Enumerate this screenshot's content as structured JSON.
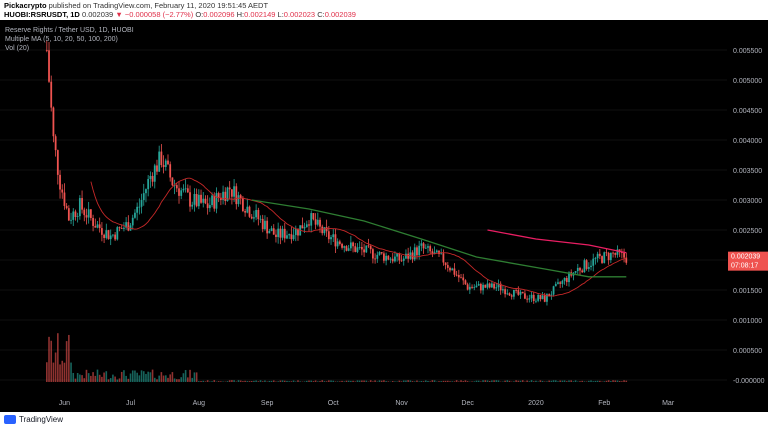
{
  "header": {
    "author": "Pickacrypto",
    "published": " published on TradingView.com, February 11, 2020 19:51:45 AEDT",
    "symbol": "HUOBI:RSRUSDT, 1D",
    "last": "0.002039",
    "change": "▼ −0.000058 (−2.77%)",
    "o_label": "O:",
    "o": "0.002096",
    "h_label": "H:",
    "h": "0.002149",
    "l_label": "L:",
    "l": "0.002023",
    "c_label": "C:",
    "c": "0.002039"
  },
  "legend": {
    "title": "Reserve Rights / Tether USD, 1D, HUOBI",
    "ma": "Multiple MA (5, 10, 20, 50, 100, 200)",
    "vol": "Vol (20)"
  },
  "price_tag": {
    "value": "0.002039",
    "countdown": "07:08:17"
  },
  "footer": {
    "brand": "TradingView"
  },
  "colors": {
    "up": "#26a69a",
    "down": "#ef5350",
    "ma_short": "#c62828",
    "ma_green": "#2e7d32",
    "ma_pink": "#e91e63",
    "tag": "#ef5350"
  },
  "chart_data": {
    "type": "candlestick",
    "ylim": [
      0.0,
      0.0057
    ],
    "y_ticks": [
      "0.005500",
      "0.005000",
      "0.004500",
      "0.004000",
      "0.003500",
      "0.003000",
      "0.002500",
      "0.002000",
      "0.001500",
      "0.001000",
      "0.000500",
      "-0.000000"
    ],
    "x_ticks": [
      "Jun",
      "Jul",
      "Aug",
      "Sep",
      "Oct",
      "Nov",
      "Dec",
      "2020",
      "Feb",
      "Mar"
    ],
    "close_path": [
      [
        "2019-05-24",
        0.0055
      ],
      [
        "2019-05-27",
        0.004
      ],
      [
        "2019-05-30",
        0.0033
      ],
      [
        "2019-06-03",
        0.0027
      ],
      [
        "2019-06-08",
        0.0029
      ],
      [
        "2019-06-15",
        0.0026
      ],
      [
        "2019-06-22",
        0.0024
      ],
      [
        "2019-06-30",
        0.0026
      ],
      [
        "2019-07-05",
        0.0029
      ],
      [
        "2019-07-10",
        0.0034
      ],
      [
        "2019-07-15",
        0.0037
      ],
      [
        "2019-07-20",
        0.0033
      ],
      [
        "2019-07-28",
        0.003
      ],
      [
        "2019-08-05",
        0.0029
      ],
      [
        "2019-08-15",
        0.0032
      ],
      [
        "2019-08-25",
        0.0028
      ],
      [
        "2019-09-05",
        0.0024
      ],
      [
        "2019-09-15",
        0.0025
      ],
      [
        "2019-09-20",
        0.0027
      ],
      [
        "2019-09-28",
        0.0024
      ],
      [
        "2019-10-10",
        0.0022
      ],
      [
        "2019-10-20",
        0.0021
      ],
      [
        "2019-11-01",
        0.002
      ],
      [
        "2019-11-10",
        0.0022
      ],
      [
        "2019-11-20",
        0.002
      ],
      [
        "2019-12-01",
        0.00155
      ],
      [
        "2019-12-15",
        0.00155
      ],
      [
        "2019-12-25",
        0.0014
      ],
      [
        "2020-01-05",
        0.00135
      ],
      [
        "2020-01-12",
        0.0016
      ],
      [
        "2020-01-20",
        0.00185
      ],
      [
        "2020-01-28",
        0.002
      ],
      [
        "2020-02-05",
        0.0021
      ],
      [
        "2020-02-11",
        0.002039
      ]
    ],
    "ma_green": [
      [
        "2019-08-25",
        0.003
      ],
      [
        "2019-09-20",
        0.00285
      ],
      [
        "2019-10-15",
        0.00265
      ],
      [
        "2019-11-10",
        0.00235
      ],
      [
        "2019-12-05",
        0.00205
      ],
      [
        "2020-01-05",
        0.00185
      ],
      [
        "2020-01-25",
        0.00172
      ],
      [
        "2020-02-11",
        0.00172
      ]
    ],
    "ma_pink": [
      [
        "2019-12-10",
        0.0025
      ],
      [
        "2020-01-01",
        0.00235
      ],
      [
        "2020-01-25",
        0.00225
      ],
      [
        "2020-02-11",
        0.00212
      ]
    ]
  }
}
